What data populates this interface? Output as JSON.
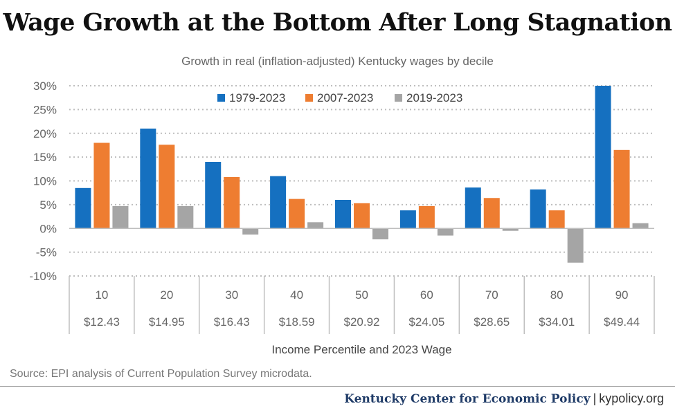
{
  "header": {
    "title": "Wage Growth at the Bottom After Long Stagnation",
    "subtitle": "Growth in real (inflation-adjusted) Kentucky wages by decile"
  },
  "footer": {
    "source": "Source: EPI analysis of Current Population Survey microdata.",
    "org": "Kentucky Center for Economic Policy",
    "separator": "|",
    "site": "kypolicy.org"
  },
  "chart_data": {
    "type": "bar",
    "title": "Wage Growth at the Bottom After Long Stagnation",
    "subtitle": "Growth in real (inflation-adjusted) Kentucky wages by decile",
    "xlabel": "Income Percentile and 2023 Wage",
    "ylabel": "",
    "categories": [
      "10",
      "20",
      "30",
      "40",
      "50",
      "60",
      "70",
      "80",
      "90"
    ],
    "wages": [
      "$12.43",
      "$14.95",
      "$16.43",
      "$18.59",
      "$20.92",
      "$24.05",
      "$28.65",
      "$34.01",
      "$49.44"
    ],
    "series": [
      {
        "name": "1979-2023",
        "color": "#1570c0",
        "values": [
          8.5,
          21.0,
          14.0,
          11.0,
          6.0,
          3.8,
          8.6,
          8.2,
          30.0
        ]
      },
      {
        "name": "2007-2023",
        "color": "#ee7d31",
        "values": [
          18.0,
          17.6,
          10.8,
          6.2,
          5.3,
          4.7,
          6.4,
          3.8,
          16.5
        ]
      },
      {
        "name": "2019-2023",
        "color": "#a5a5a5",
        "values": [
          4.7,
          4.7,
          -1.3,
          1.3,
          -2.3,
          -1.5,
          -0.5,
          -7.2,
          1.1
        ]
      }
    ],
    "ylim": [
      -10,
      30
    ],
    "yticks": [
      30,
      25,
      20,
      15,
      10,
      5,
      0,
      -5,
      -10
    ],
    "ytick_labels": [
      "30%",
      "25%",
      "20%",
      "15%",
      "10%",
      "5%",
      "0%",
      "-5%",
      "-10%"
    ],
    "grid": true,
    "legend_position": "top-center"
  }
}
